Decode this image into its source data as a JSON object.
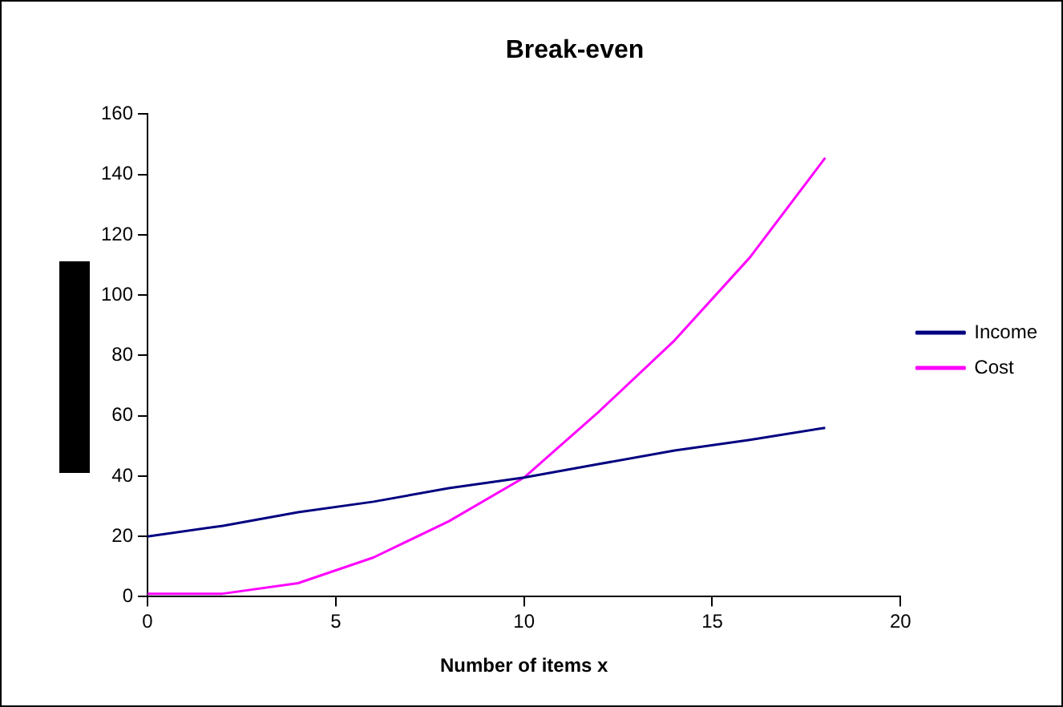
{
  "chart_data": {
    "type": "line",
    "title": "Break-even",
    "xlabel": "Number of items x",
    "x": [
      0,
      2,
      4,
      6,
      8,
      10,
      12,
      14,
      16,
      18
    ],
    "series": [
      {
        "name": "Income",
        "color": "#000080",
        "values": [
          20,
          23.5,
          28,
          31.5,
          36,
          39.5,
          44,
          48.5,
          52,
          56
        ]
      },
      {
        "name": "Cost",
        "color": "#ff00ff",
        "values": [
          1,
          1,
          4.5,
          13,
          25,
          39.5,
          61.5,
          85,
          112.5,
          145.5
        ]
      }
    ],
    "xlim": [
      0,
      20
    ],
    "xticks": [
      0,
      5,
      10,
      15,
      20
    ],
    "ylim": [
      0,
      160
    ],
    "yticks": [
      0,
      20,
      40,
      60,
      80,
      100,
      120,
      140,
      160
    ],
    "grid": false,
    "legend": "right",
    "marker": "none",
    "line_style": "solid"
  }
}
